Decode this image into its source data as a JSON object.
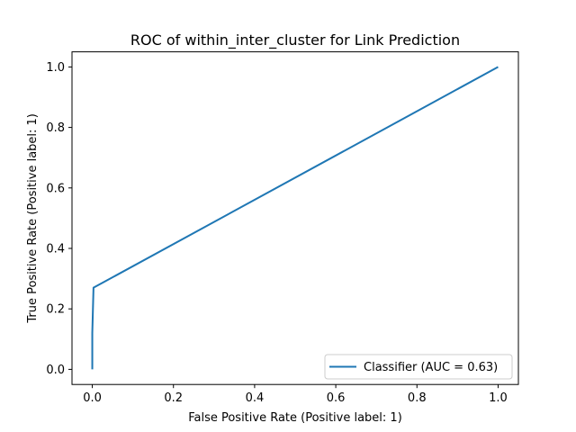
{
  "chart_data": {
    "type": "line",
    "title": "ROC of within_inter_cluster for Link Prediction",
    "xlabel": "False Positive Rate (Positive label: 1)",
    "ylabel": "True Positive Rate (Positive label: 1)",
    "xlim": [
      -0.05,
      1.05
    ],
    "ylim": [
      -0.05,
      1.05
    ],
    "xticks": [
      0.0,
      0.2,
      0.4,
      0.6,
      0.8,
      1.0
    ],
    "yticks": [
      0.0,
      0.2,
      0.4,
      0.6,
      0.8,
      1.0
    ],
    "xtick_labels": [
      "0.0",
      "0.2",
      "0.4",
      "0.6",
      "0.8",
      "1.0"
    ],
    "ytick_labels": [
      "0.0",
      "0.2",
      "0.4",
      "0.6",
      "0.8",
      "1.0"
    ],
    "grid": false,
    "legend_position": "lower-right",
    "series": [
      {
        "name": "Classifier (AUC = 0.63)",
        "color": "#1f77b4",
        "x": [
          0.0,
          0.0,
          0.003,
          1.0
        ],
        "y": [
          0.0,
          0.12,
          0.27,
          1.0
        ]
      }
    ]
  }
}
